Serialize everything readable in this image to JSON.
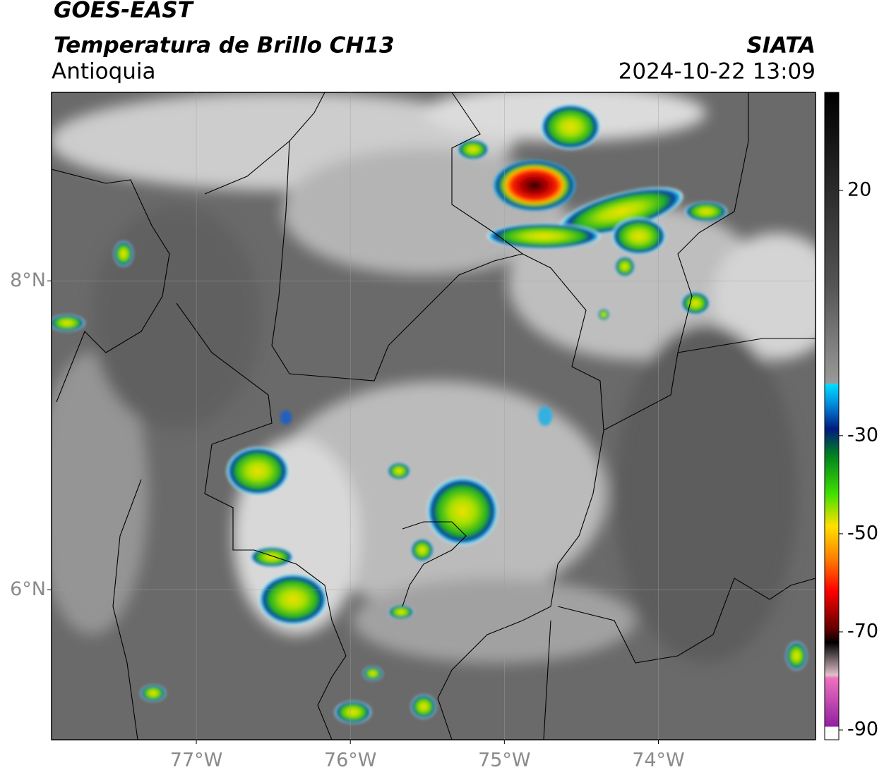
{
  "header": {
    "satellite": "GOES-EAST",
    "product": "Temperatura de Brillo CH13",
    "region": "Antioquia",
    "source": "SIATA",
    "datetime": "2024-10-22 13:09"
  },
  "map": {
    "lonlim": [
      -77.94,
      -72.98
    ],
    "latlim": [
      5.03,
      9.22
    ],
    "lonticks": [
      {
        "value": -77,
        "label": "77°W"
      },
      {
        "value": -76,
        "label": "76°W"
      },
      {
        "value": -75,
        "label": "75°W"
      },
      {
        "value": -74,
        "label": "74°W"
      }
    ],
    "latticks": [
      {
        "value": 8,
        "label": "8°N"
      },
      {
        "value": 6,
        "label": "6°N"
      }
    ],
    "grid": true
  },
  "colorbar": {
    "lim": [
      -92,
      40
    ],
    "ticks": [
      20,
      -30,
      -50,
      -70,
      -90
    ]
  }
}
